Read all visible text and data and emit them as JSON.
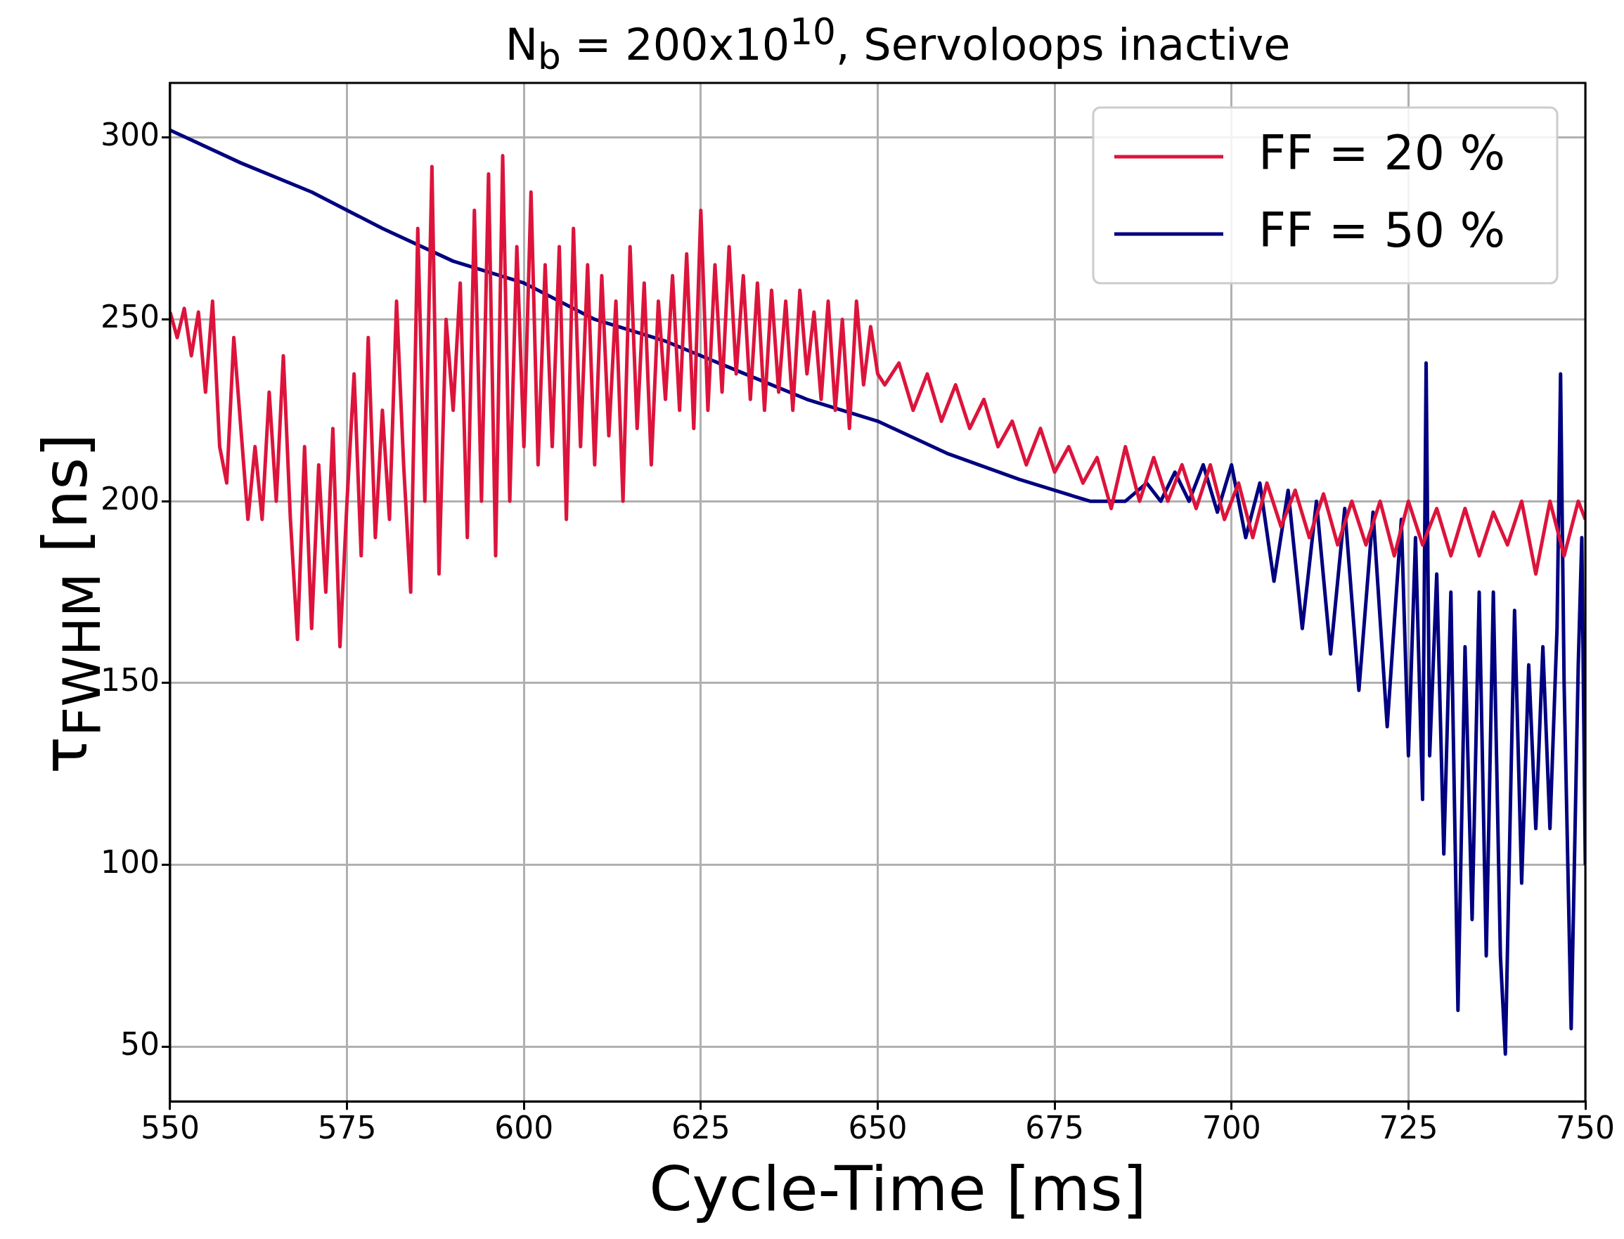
{
  "chart_data": {
    "type": "line",
    "title": "N$_{b}$ = 200x10$^{10}$, Servoloops inactive",
    "xlabel": "Cycle-Time [ms]",
    "ylabel": "τ$_{FWHM}$ [ns]",
    "xlim": [
      550,
      750
    ],
    "xticks": [
      550,
      575,
      600,
      625,
      650,
      675,
      700,
      725,
      750
    ],
    "ylim": [
      35,
      315
    ],
    "yticks": [
      50,
      100,
      150,
      200,
      250,
      300
    ],
    "grid": true,
    "legend": "top right",
    "marker": "none",
    "line_style": "solid",
    "series": [
      {
        "name": "FF = 20 %",
        "color": "#dc143c",
        "x": [
          550,
          551,
          552,
          553,
          554,
          555,
          556,
          557,
          558,
          559,
          560,
          561,
          562,
          563,
          564,
          565,
          566,
          567,
          568,
          569,
          570,
          571,
          572,
          573,
          574,
          575,
          576,
          577,
          578,
          579,
          580,
          581,
          582,
          583,
          584,
          585,
          586,
          587,
          588,
          589,
          590,
          591,
          592,
          593,
          594,
          595,
          596,
          597,
          598,
          599,
          600,
          601,
          602,
          603,
          604,
          605,
          606,
          607,
          608,
          609,
          610,
          611,
          612,
          613,
          614,
          615,
          616,
          617,
          618,
          619,
          620,
          621,
          622,
          623,
          624,
          625,
          626,
          627,
          628,
          629,
          630,
          631,
          632,
          633,
          634,
          635,
          636,
          637,
          638,
          639,
          640,
          641,
          642,
          643,
          644,
          645,
          646,
          647,
          648,
          649,
          650,
          651,
          653,
          655,
          657,
          659,
          661,
          663,
          665,
          667,
          669,
          671,
          673,
          675,
          677,
          679,
          681,
          683,
          685,
          687,
          689,
          691,
          693,
          695,
          697,
          699,
          701,
          703,
          705,
          707,
          709,
          711,
          713,
          715,
          717,
          719,
          721,
          723,
          725,
          727,
          729,
          731,
          733,
          735,
          737,
          739,
          741,
          743,
          745,
          747,
          749,
          750
        ],
        "values": [
          252,
          245,
          253,
          240,
          252,
          230,
          255,
          215,
          205,
          245,
          220,
          195,
          215,
          195,
          230,
          200,
          240,
          195,
          162,
          215,
          165,
          210,
          175,
          220,
          160,
          200,
          235,
          185,
          245,
          190,
          225,
          195,
          255,
          210,
          175,
          275,
          200,
          292,
          180,
          250,
          225,
          260,
          190,
          280,
          200,
          290,
          185,
          295,
          200,
          270,
          215,
          285,
          210,
          265,
          215,
          270,
          195,
          275,
          215,
          265,
          210,
          262,
          218,
          255,
          200,
          270,
          220,
          260,
          210,
          255,
          228,
          262,
          225,
          268,
          220,
          280,
          225,
          265,
          230,
          270,
          235,
          262,
          228,
          260,
          225,
          258,
          230,
          255,
          225,
          258,
          235,
          252,
          228,
          255,
          225,
          250,
          220,
          255,
          232,
          248,
          235,
          232,
          238,
          225,
          235,
          222,
          232,
          220,
          228,
          215,
          222,
          210,
          220,
          208,
          215,
          205,
          212,
          198,
          215,
          200,
          212,
          200,
          210,
          198,
          210,
          195,
          205,
          190,
          205,
          193,
          203,
          190,
          202,
          188,
          200,
          188,
          200,
          185,
          200,
          188,
          198,
          185,
          198,
          185,
          197,
          188,
          200,
          180,
          200,
          185,
          200,
          195
        ]
      },
      {
        "name": "FF = 50 %",
        "color": "#000080",
        "x": [
          550,
          560,
          570,
          580,
          590,
          600,
          610,
          620,
          630,
          640,
          650,
          660,
          670,
          680,
          685,
          688,
          690,
          692,
          694,
          696,
          698,
          700,
          702,
          704,
          706,
          708,
          710,
          712,
          714,
          716,
          718,
          720,
          722,
          724,
          725,
          726,
          727,
          727.5,
          728,
          729,
          730,
          731,
          732,
          733,
          734,
          735,
          736,
          737,
          738,
          738.7,
          739.5,
          740,
          741,
          742,
          743,
          744,
          745,
          746,
          746.5,
          747,
          748,
          749,
          749.5,
          750
        ],
        "values": [
          302,
          293,
          285,
          275,
          266,
          260,
          250,
          244,
          236,
          228,
          222,
          213,
          206,
          200,
          200,
          205,
          200,
          208,
          200,
          210,
          197,
          210,
          190,
          205,
          178,
          203,
          165,
          200,
          158,
          198,
          148,
          197,
          138,
          195,
          130,
          190,
          118,
          238,
          130,
          180,
          103,
          175,
          60,
          160,
          85,
          175,
          75,
          175,
          75,
          48,
          125,
          170,
          95,
          155,
          110,
          160,
          110,
          165,
          235,
          150,
          55,
          155,
          190,
          100
        ]
      }
    ]
  }
}
